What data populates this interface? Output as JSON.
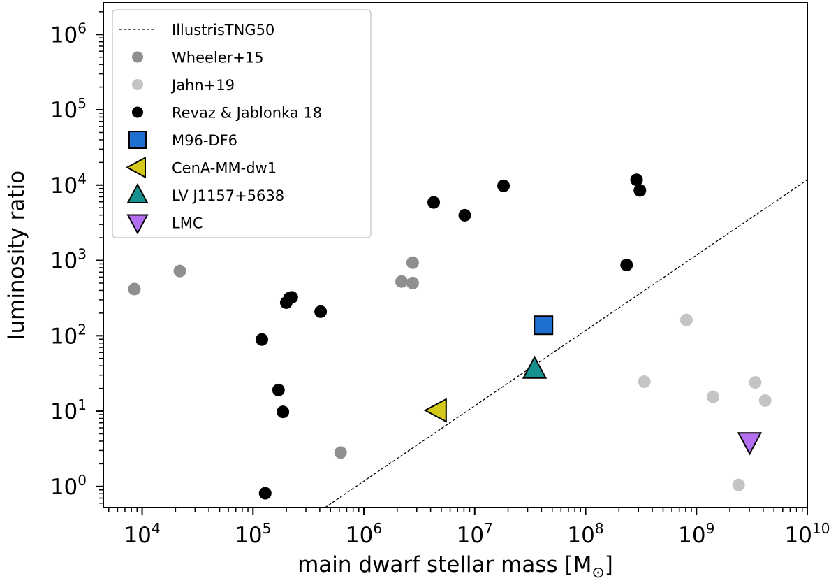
{
  "chart_data": {
    "type": "scatter",
    "title": "",
    "xlabel": "main dwarf stellar mass [M",
    "xlabel_subscript": "⊙",
    "xlabel_close": "]",
    "ylabel": "luminosity ratio",
    "xscale": "log",
    "yscale": "log",
    "xlim_exp": [
      3.65,
      10
    ],
    "ylim_exp": [
      -0.28,
      6.42
    ],
    "x_ticks": [
      {
        "base": "10",
        "exp": "4",
        "value": 4
      },
      {
        "base": "10",
        "exp": "5",
        "value": 5
      },
      {
        "base": "10",
        "exp": "6",
        "value": 6
      },
      {
        "base": "10",
        "exp": "7",
        "value": 7
      },
      {
        "base": "10",
        "exp": "8",
        "value": 8
      },
      {
        "base": "10",
        "exp": "9",
        "value": 9
      },
      {
        "base": "10",
        "exp": "10",
        "value": 10
      }
    ],
    "y_ticks": [
      {
        "base": "10",
        "exp": "0",
        "value": 0
      },
      {
        "base": "10",
        "exp": "1",
        "value": 1
      },
      {
        "base": "10",
        "exp": "2",
        "value": 2
      },
      {
        "base": "10",
        "exp": "3",
        "value": 3
      },
      {
        "base": "10",
        "exp": "4",
        "value": 4
      },
      {
        "base": "10",
        "exp": "5",
        "value": 5
      },
      {
        "base": "10",
        "exp": "6",
        "value": 6
      }
    ],
    "legend_position": "upper-left",
    "series": [
      {
        "name": "IllustrisTNG50",
        "kind": "line",
        "style": "dashed",
        "color": "#000000",
        "log_points": [
          [
            5.65,
            -0.28
          ],
          [
            10.0,
            4.07
          ]
        ]
      },
      {
        "name": "Wheeler+15",
        "kind": "circle",
        "color": "#8f8f8f",
        "log_points": [
          [
            3.93,
            2.62
          ],
          [
            4.34,
            2.86
          ],
          [
            5.79,
            0.45
          ],
          [
            6.34,
            2.72
          ],
          [
            6.44,
            2.7
          ],
          [
            6.44,
            2.97
          ]
        ]
      },
      {
        "name": "Jahn+19",
        "kind": "circle",
        "color": "#c4c4c4",
        "log_points": [
          [
            8.91,
            2.21
          ],
          [
            9.53,
            1.38
          ],
          [
            9.15,
            1.19
          ],
          [
            9.62,
            1.14
          ],
          [
            9.38,
            0.02
          ],
          [
            8.53,
            1.39
          ]
        ]
      },
      {
        "name": "Revaz & Jablonka 18",
        "kind": "circle",
        "color": "#000000",
        "log_points": [
          [
            5.08,
            1.95
          ],
          [
            5.23,
            1.28
          ],
          [
            5.27,
            0.99
          ],
          [
            5.11,
            -0.09
          ],
          [
            5.3,
            2.44
          ],
          [
            5.33,
            2.5
          ],
          [
            5.35,
            2.51
          ],
          [
            5.61,
            2.32
          ],
          [
            6.63,
            3.77
          ],
          [
            6.91,
            3.6
          ],
          [
            7.26,
            3.99
          ],
          [
            8.37,
            2.94
          ],
          [
            8.46,
            4.07
          ],
          [
            8.49,
            3.93
          ]
        ]
      },
      {
        "name": "M96-DF6",
        "kind": "square",
        "color": "#1f6fd0",
        "log_points": [
          [
            7.62,
            2.14
          ]
        ]
      },
      {
        "name": "CenA-MM-dw1",
        "kind": "triangle-left",
        "color": "#d4c81a",
        "log_points": [
          [
            6.66,
            1.01
          ]
        ]
      },
      {
        "name": "LV J1157+5638",
        "kind": "triangle-up",
        "color": "#15908f",
        "log_points": [
          [
            7.54,
            1.56
          ]
        ]
      },
      {
        "name": "LMC",
        "kind": "triangle-down",
        "color": "#b46ff0",
        "log_points": [
          [
            9.48,
            0.59
          ]
        ]
      }
    ]
  }
}
